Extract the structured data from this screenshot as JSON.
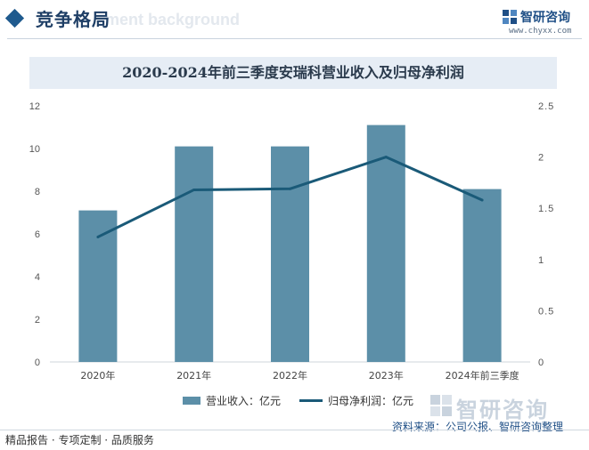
{
  "header": {
    "section_title": "竞争格局",
    "ghost_text": "ment background",
    "brand_name": "智研咨询",
    "brand_url": "www.chyxx.com"
  },
  "chart_data": {
    "type": "bar",
    "title": "2020-2024年前三季度安瑞科营业收入及归母净利润",
    "categories": [
      "2020年",
      "2021年",
      "2022年",
      "2023年",
      "2024年前三季度"
    ],
    "series": [
      {
        "name": "营业收入：亿元",
        "type": "bar",
        "axis": "left",
        "values": [
          7.1,
          10.1,
          10.1,
          11.1,
          8.1
        ]
      },
      {
        "name": "归母净利润：亿元",
        "type": "line",
        "axis": "right",
        "values": [
          1.22,
          1.68,
          1.69,
          2.0,
          1.58
        ]
      }
    ],
    "y_left": {
      "min": 0,
      "max": 12,
      "step": 2,
      "ticks": [
        "0",
        "2",
        "4",
        "6",
        "8",
        "10",
        "12"
      ]
    },
    "y_right": {
      "min": 0,
      "max": 2.5,
      "step": 0.5,
      "ticks": [
        "0",
        "0.5",
        "1",
        "1.5",
        "2",
        "2.5"
      ]
    },
    "grid": false,
    "legend": "bottom"
  },
  "colors": {
    "bar": "#5c8fa8",
    "line": "#1a5a78",
    "title_band": "#e6edf5",
    "accent": "#1f5a8e"
  },
  "footer": {
    "left_text": "精品报告 · 专项定制 · 品质服务",
    "brand_watermark": "智研咨询",
    "source": "资料来源：公司公报、智研咨询整理"
  }
}
